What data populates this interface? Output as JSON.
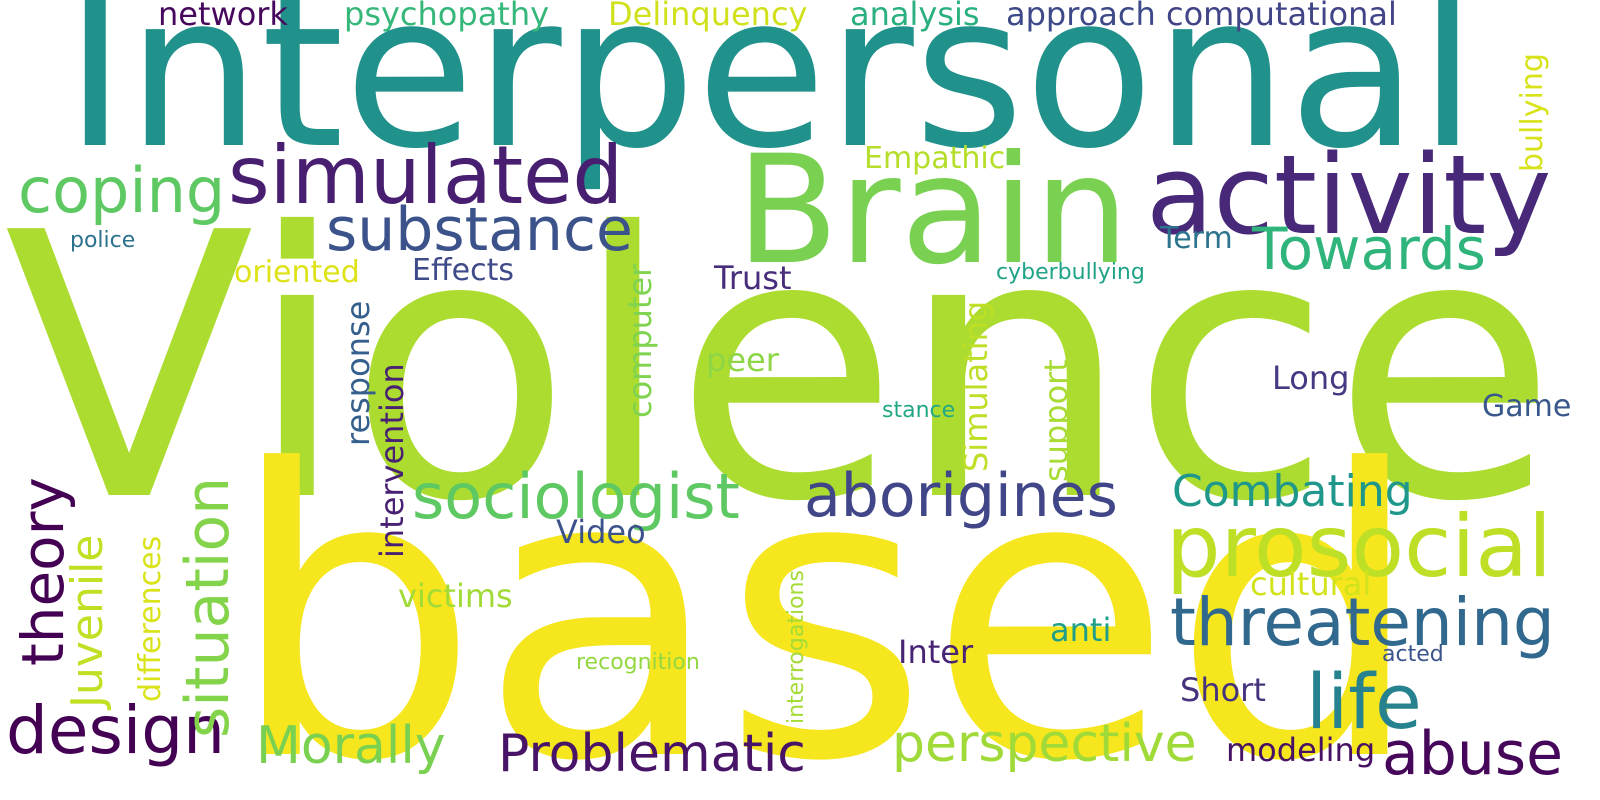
{
  "words": [
    {
      "key": "violence",
      "text": "Violence",
      "color": "#addc30"
    },
    {
      "key": "interpersonal",
      "text": "Interpersonal",
      "color": "#21918c"
    },
    {
      "key": "based",
      "text": "based",
      "color": "#f5e61e"
    },
    {
      "key": "brain",
      "text": "Brain",
      "color": "#7ad151"
    },
    {
      "key": "activity",
      "text": "activity",
      "color": "#482878"
    },
    {
      "key": "simulated",
      "text": "simulated",
      "color": "#481f70"
    },
    {
      "key": "substance",
      "text": "substance",
      "color": "#3b528b"
    },
    {
      "key": "coping",
      "text": "coping",
      "color": "#5ec962"
    },
    {
      "key": "towards",
      "text": "Towards",
      "color": "#2fb47c"
    },
    {
      "key": "prosocial",
      "text": "prosocial",
      "color": "#bddf26"
    },
    {
      "key": "sociologist",
      "text": "sociologist",
      "color": "#5ec962"
    },
    {
      "key": "aborigines",
      "text": "aborigines",
      "color": "#404688"
    },
    {
      "key": "threatening",
      "text": "threatening",
      "color": "#31688e"
    },
    {
      "key": "life",
      "text": "life",
      "color": "#26828e"
    },
    {
      "key": "abuse",
      "text": "abuse",
      "color": "#46075a"
    },
    {
      "key": "design",
      "text": "design",
      "color": "#440154"
    },
    {
      "key": "problematic",
      "text": "Problematic",
      "color": "#481467"
    },
    {
      "key": "morally",
      "text": "Morally",
      "color": "#7ad151"
    },
    {
      "key": "perspective",
      "text": "perspective",
      "color": "#a0da39"
    },
    {
      "key": "combating",
      "text": "Combating",
      "color": "#1f988b"
    },
    {
      "key": "situation",
      "text": "situation",
      "color": "#84d44b"
    },
    {
      "key": "theory",
      "text": "theory",
      "color": "#440154"
    },
    {
      "key": "juvenile",
      "text": "Juvenile",
      "color": "#c2df23"
    },
    {
      "key": "network",
      "text": "network",
      "color": "#46085c"
    },
    {
      "key": "psychopathy",
      "text": "psychopathy",
      "color": "#35b779"
    },
    {
      "key": "delinquency",
      "text": "Delinquency",
      "color": "#d0e11c"
    },
    {
      "key": "analysis",
      "text": "analysis",
      "color": "#2ab07f"
    },
    {
      "key": "approach",
      "text": "approach",
      "color": "#3e4989"
    },
    {
      "key": "computational",
      "text": "computational",
      "color": "#414487"
    },
    {
      "key": "bullying",
      "text": "bullying",
      "color": "#d8e219"
    },
    {
      "key": "empathic",
      "text": "Empathic",
      "color": "#b5de2b"
    },
    {
      "key": "police",
      "text": "police",
      "color": "#2c728e"
    },
    {
      "key": "oriented",
      "text": "oriented",
      "color": "#dde318"
    },
    {
      "key": "effects",
      "text": "Effects",
      "color": "#3e4a89"
    },
    {
      "key": "trust",
      "text": "Trust",
      "color": "#472d7b"
    },
    {
      "key": "term",
      "text": "Term",
      "color": "#2c738e"
    },
    {
      "key": "cyberbullying",
      "text": "cyberbullying",
      "color": "#20a386"
    },
    {
      "key": "peer",
      "text": "peer",
      "color": "#8ed645"
    },
    {
      "key": "long",
      "text": "Long",
      "color": "#443983"
    },
    {
      "key": "game",
      "text": "Game",
      "color": "#38588c"
    },
    {
      "key": "stance",
      "text": "stance",
      "color": "#22a785"
    },
    {
      "key": "video",
      "text": "Video",
      "color": "#3b528b"
    },
    {
      "key": "victims",
      "text": "victims",
      "color": "#a2da37"
    },
    {
      "key": "cultural",
      "text": "cultural",
      "color": "#d2e21b"
    },
    {
      "key": "anti",
      "text": "anti",
      "color": "#1f9e89"
    },
    {
      "key": "inter",
      "text": "Inter",
      "color": "#482475"
    },
    {
      "key": "acted",
      "text": "acted",
      "color": "#3a548c"
    },
    {
      "key": "recognition",
      "text": "recognition",
      "color": "#93d741"
    },
    {
      "key": "short",
      "text": "Short",
      "color": "#46337e"
    },
    {
      "key": "modeling",
      "text": "modeling",
      "color": "#471164"
    },
    {
      "key": "computer",
      "text": "computer",
      "color": "#7fd34e"
    },
    {
      "key": "response",
      "text": "response",
      "color": "#355f8d"
    },
    {
      "key": "intervention",
      "text": "intervention",
      "color": "#482173"
    },
    {
      "key": "simulating",
      "text": "Simulating",
      "color": "#bddf26"
    },
    {
      "key": "support",
      "text": "support",
      "color": "#a8db34"
    },
    {
      "key": "differences",
      "text": "differences",
      "color": "#dae319"
    },
    {
      "key": "interrogations",
      "text": "interrogations",
      "color": "#a5db36"
    }
  ]
}
